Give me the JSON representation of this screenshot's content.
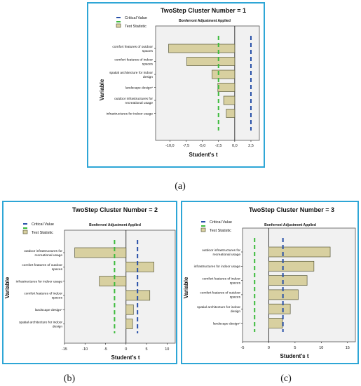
{
  "chart_data": [
    {
      "type": "bar",
      "panel": "(a)",
      "title": "TwoStep Cluster Number = 1",
      "subtitle": "Bonferroni Adjustment Applied",
      "xlabel": "Student's t",
      "ylabel": "Variable",
      "xlim": [
        -12.2,
        3.8
      ],
      "xticks": [
        -10.0,
        -7.5,
        -5.0,
        -2.5,
        0.0,
        2.5
      ],
      "xtick_labels": [
        "-10,0",
        "-7,5",
        "-5,0",
        "-2,5",
        "0,0",
        "2,5"
      ],
      "categories": [
        "comfort features of outdoor spaces",
        "comfort features of indoor spaces",
        "spatial architecture for indoor design",
        "landscape design*",
        "outdoor infrastructures for recreational usage",
        "infrastructures for indoor usage"
      ],
      "values": [
        -10.2,
        -7.4,
        -3.5,
        -2.6,
        -1.7,
        -1.3
      ],
      "critical_value": 2.5,
      "test_statistic_line": -2.5,
      "legend": [
        "Critical Value",
        "Test Statistic"
      ]
    },
    {
      "type": "bar",
      "panel": "(b)",
      "title": "TwoStep Cluster Number = 2",
      "subtitle": "Bonferroni Adjustment Applied",
      "xlabel": "Student's t",
      "ylabel": "Variable",
      "xlim": [
        -15,
        12
      ],
      "xticks": [
        -15,
        -10,
        -5,
        0,
        5,
        10
      ],
      "xtick_labels": [
        "-15",
        "-10",
        "-5",
        "0",
        "5",
        "10"
      ],
      "categories": [
        "outdoor infrastructures for recreational usage",
        "comfort features of outdoor spaces",
        "infrastructures for indoor usage",
        "comfort features of indoor spaces",
        "landscape design*",
        "spatial architecture for indoor design"
      ],
      "values": [
        -12.5,
        6.8,
        -6.5,
        5.8,
        1.8,
        1.6
      ],
      "critical_value": 2.8,
      "test_statistic_line": -2.8,
      "legend": [
        "Critical Value",
        "Test Statistic"
      ]
    },
    {
      "type": "bar",
      "panel": "(c)",
      "title": "TwoStep Cluster Number = 3",
      "subtitle": "Bonferroni Adjustment Applied",
      "xlabel": "Student's t",
      "ylabel": "Variable",
      "xlim": [
        -5,
        16.5
      ],
      "xticks": [
        -5,
        0,
        5,
        10,
        15
      ],
      "xtick_labels": [
        "-5",
        "0",
        "5",
        "10",
        "15"
      ],
      "categories": [
        "outdoor infrastructures for recreational usage",
        "infrastructures for indoor usage",
        "comfort features of indoor spaces",
        "comfort features of outdoor spaces",
        "spatial architecture for indoor design",
        "landscape design*"
      ],
      "values": [
        11.7,
        8.6,
        7.3,
        5.6,
        4.1,
        2.6
      ],
      "critical_value": 2.7,
      "test_statistic_line": -2.7,
      "legend": [
        "Critical Value",
        "Test Statistic"
      ]
    }
  ],
  "colors": {
    "bar": "#d8d0a0",
    "critical": "#2850a8",
    "test_statistic": "#3dbb3d",
    "frame": "#2ea6d6"
  }
}
